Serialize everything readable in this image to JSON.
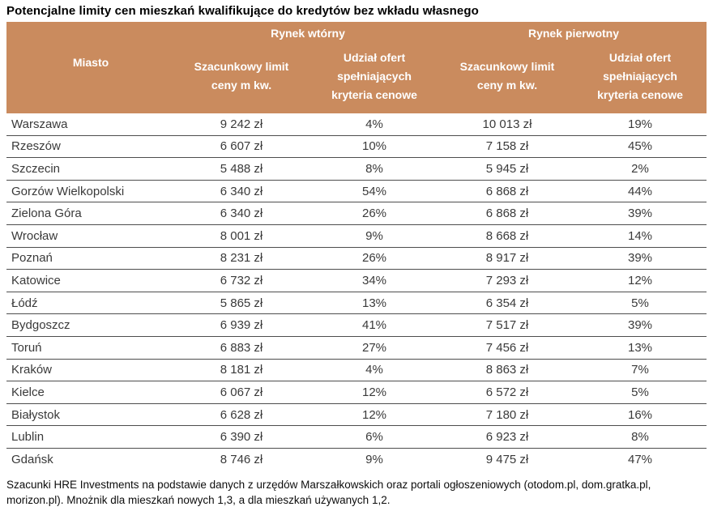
{
  "chart_data": {
    "type": "table",
    "title": "Potencjalne limity cen mieszkań kwalifikujące do kredytów bez wkładu własnego",
    "column_groups": [
      "Rynek wtórny",
      "Rynek pierwotny"
    ],
    "columns": [
      "Miasto",
      "Szacunkowy limit ceny m kw.",
      "Udział ofert spełniających kryteria cenowe",
      "Szacunkowy limit ceny m kw.",
      "Udział ofert spełniających kryteria cenowe"
    ],
    "rows": [
      [
        "Warszawa",
        "9 242 zł",
        "4%",
        "10 013 zł",
        "19%"
      ],
      [
        "Rzeszów",
        "6 607 zł",
        "10%",
        "7 158 zł",
        "45%"
      ],
      [
        "Szczecin",
        "5 488 zł",
        "8%",
        "5 945 zł",
        "2%"
      ],
      [
        "Gorzów Wielkopolski",
        "6 340 zł",
        "54%",
        "6 868 zł",
        "44%"
      ],
      [
        "Zielona Góra",
        "6 340 zł",
        "26%",
        "6 868 zł",
        "39%"
      ],
      [
        "Wrocław",
        "8 001 zł",
        "9%",
        "8 668 zł",
        "14%"
      ],
      [
        "Poznań",
        "8 231 zł",
        "26%",
        "8 917 zł",
        "39%"
      ],
      [
        "Katowice",
        "6 732 zł",
        "34%",
        "7 293 zł",
        "12%"
      ],
      [
        "Łódź",
        "5 865 zł",
        "13%",
        "6 354 zł",
        "5%"
      ],
      [
        "Bydgoszcz",
        "6 939 zł",
        "41%",
        "7 517 zł",
        "39%"
      ],
      [
        "Toruń",
        "6 883 zł",
        "27%",
        "7 456 zł",
        "13%"
      ],
      [
        "Kraków",
        "8 181 zł",
        "4%",
        "8 863 zł",
        "7%"
      ],
      [
        "Kielce",
        "6 067 zł",
        "12%",
        "6 572 zł",
        "5%"
      ],
      [
        "Białystok",
        "6 628 zł",
        "12%",
        "7 180 zł",
        "16%"
      ],
      [
        "Lublin",
        "6 390 zł",
        "6%",
        "6 923 zł",
        "8%"
      ],
      [
        "Gdańsk",
        "8 746 zł",
        "9%",
        "9 475 zł",
        "47%"
      ]
    ],
    "source_note": "Szacunki HRE Investments na podstawie danych z urzędów Marszałkowskich oraz portali ogłoszeniowych (otodom.pl, dom.gratka.pl, morizon.pl). Mnożnik dla mieszkań nowych 1,3, a dla mieszkań używanych 1,2.",
    "layout": {
      "grid": false,
      "header_rows": 2,
      "units": "zł / %"
    }
  },
  "colors": {
    "header_bg": "#CA8B5E",
    "header_text": "#FFFFFF",
    "body_text": "#3A3A3A",
    "row_border": "#4D4D4D"
  }
}
